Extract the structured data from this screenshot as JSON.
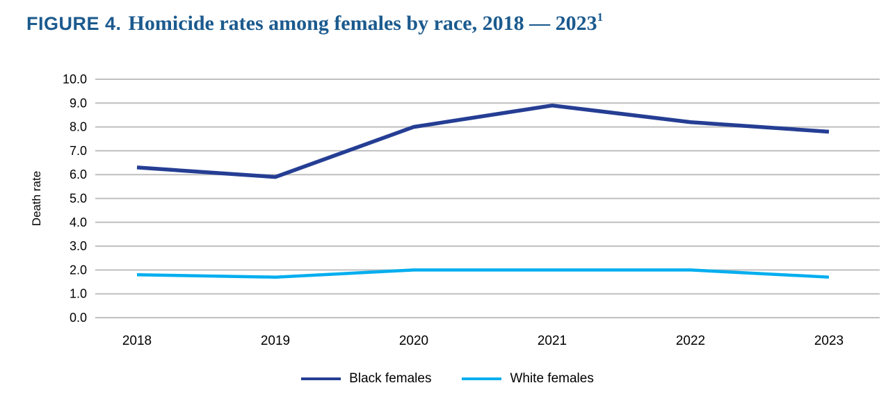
{
  "title": {
    "figure_label": "FIGURE 4.",
    "text": "Homicide rates among females by race, 2018 — 2023",
    "superscript": "1"
  },
  "chart_data": {
    "type": "line",
    "categories": [
      "2018",
      "2019",
      "2020",
      "2021",
      "2022",
      "2023"
    ],
    "series": [
      {
        "name": "Black females",
        "values": [
          6.3,
          5.9,
          8.0,
          8.9,
          8.2,
          7.8
        ],
        "color": "#253e94"
      },
      {
        "name": "White females",
        "values": [
          1.8,
          1.7,
          2.0,
          2.0,
          2.0,
          1.7
        ],
        "color": "#00aeef"
      }
    ],
    "title": "FIGURE 4. Homicide rates among females by race, 2018 — 2023",
    "xlabel": "",
    "ylabel": "Death rate",
    "ylim": [
      0,
      10
    ],
    "ytick_step": 1.0,
    "ytick_labels": [
      "0.0",
      "1.0",
      "2.0",
      "3.0",
      "4.0",
      "5.0",
      "6.0",
      "7.0",
      "8.0",
      "9.0",
      "10.0"
    ],
    "grid": "horizontal",
    "legend_position": "bottom"
  },
  "colors": {
    "title": "#1b5a8e",
    "gridline": "#bfbfbf",
    "axis_text": "#000000"
  }
}
